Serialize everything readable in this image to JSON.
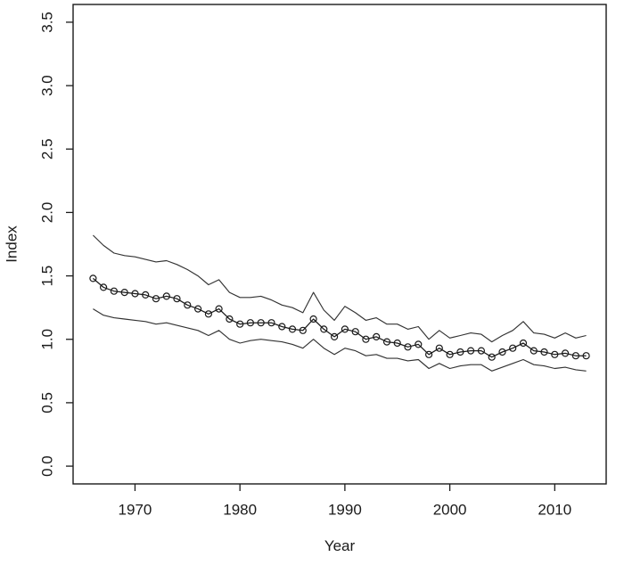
{
  "figure": {
    "background": "#ffffff",
    "text_color": "#1a1a1a"
  },
  "chart_data": {
    "type": "line",
    "title": "",
    "xlabel": "Year",
    "ylabel": "Index",
    "xlim": [
      1964.1,
      2014.9
    ],
    "ylim": [
      -0.14,
      3.64
    ],
    "grid": "off",
    "legend": "none",
    "x_ticks": [
      1970,
      1980,
      1990,
      2000,
      2010
    ],
    "x_tick_labels": [
      "1970",
      "1980",
      "1990",
      "2000",
      "2010"
    ],
    "y_ticks": [
      0.0,
      0.5,
      1.0,
      1.5,
      2.0,
      2.5,
      3.0,
      3.5
    ],
    "y_tick_labels": [
      "0.0",
      "0.5",
      "1.0",
      "1.5",
      "2.0",
      "2.5",
      "3.0",
      "3.5"
    ],
    "line_color": "#1a1a1a",
    "band_color": "#333333",
    "marker": "open-circle",
    "x": [
      1966,
      1967,
      1968,
      1969,
      1970,
      1971,
      1972,
      1973,
      1974,
      1975,
      1976,
      1977,
      1978,
      1979,
      1980,
      1981,
      1982,
      1983,
      1984,
      1985,
      1986,
      1987,
      1988,
      1989,
      1990,
      1991,
      1992,
      1993,
      1994,
      1995,
      1996,
      1997,
      1998,
      1999,
      2000,
      2001,
      2002,
      2003,
      2004,
      2005,
      2006,
      2007,
      2008,
      2009,
      2010,
      2011,
      2012,
      2013
    ],
    "series": [
      {
        "name": "index",
        "marker": "open-circle",
        "values": [
          1.48,
          1.41,
          1.38,
          1.37,
          1.36,
          1.35,
          1.32,
          1.34,
          1.32,
          1.27,
          1.24,
          1.2,
          1.24,
          1.16,
          1.12,
          1.13,
          1.13,
          1.13,
          1.1,
          1.08,
          1.07,
          1.16,
          1.08,
          1.02,
          1.08,
          1.06,
          1.0,
          1.02,
          0.98,
          0.97,
          0.94,
          0.96,
          0.88,
          0.93,
          0.88,
          0.9,
          0.91,
          0.91,
          0.86,
          0.9,
          0.93,
          0.97,
          0.91,
          0.9,
          0.88,
          0.89,
          0.87,
          0.87
        ]
      },
      {
        "name": "upper-ci",
        "marker": "none",
        "values": [
          1.82,
          1.74,
          1.68,
          1.66,
          1.65,
          1.63,
          1.61,
          1.62,
          1.59,
          1.55,
          1.5,
          1.43,
          1.47,
          1.37,
          1.33,
          1.33,
          1.34,
          1.31,
          1.27,
          1.25,
          1.21,
          1.37,
          1.23,
          1.15,
          1.26,
          1.21,
          1.15,
          1.17,
          1.12,
          1.12,
          1.08,
          1.1,
          1.0,
          1.07,
          1.01,
          1.03,
          1.05,
          1.04,
          0.98,
          1.03,
          1.07,
          1.14,
          1.05,
          1.04,
          1.01,
          1.05,
          1.01,
          1.03
        ]
      },
      {
        "name": "lower-ci",
        "marker": "none",
        "values": [
          1.24,
          1.19,
          1.17,
          1.16,
          1.15,
          1.14,
          1.12,
          1.13,
          1.11,
          1.09,
          1.07,
          1.03,
          1.07,
          1.0,
          0.97,
          0.99,
          1.0,
          0.99,
          0.98,
          0.96,
          0.93,
          1.0,
          0.93,
          0.88,
          0.93,
          0.91,
          0.87,
          0.88,
          0.85,
          0.85,
          0.83,
          0.84,
          0.77,
          0.81,
          0.77,
          0.79,
          0.8,
          0.8,
          0.75,
          0.78,
          0.81,
          0.84,
          0.8,
          0.79,
          0.77,
          0.78,
          0.76,
          0.75
        ]
      }
    ]
  }
}
